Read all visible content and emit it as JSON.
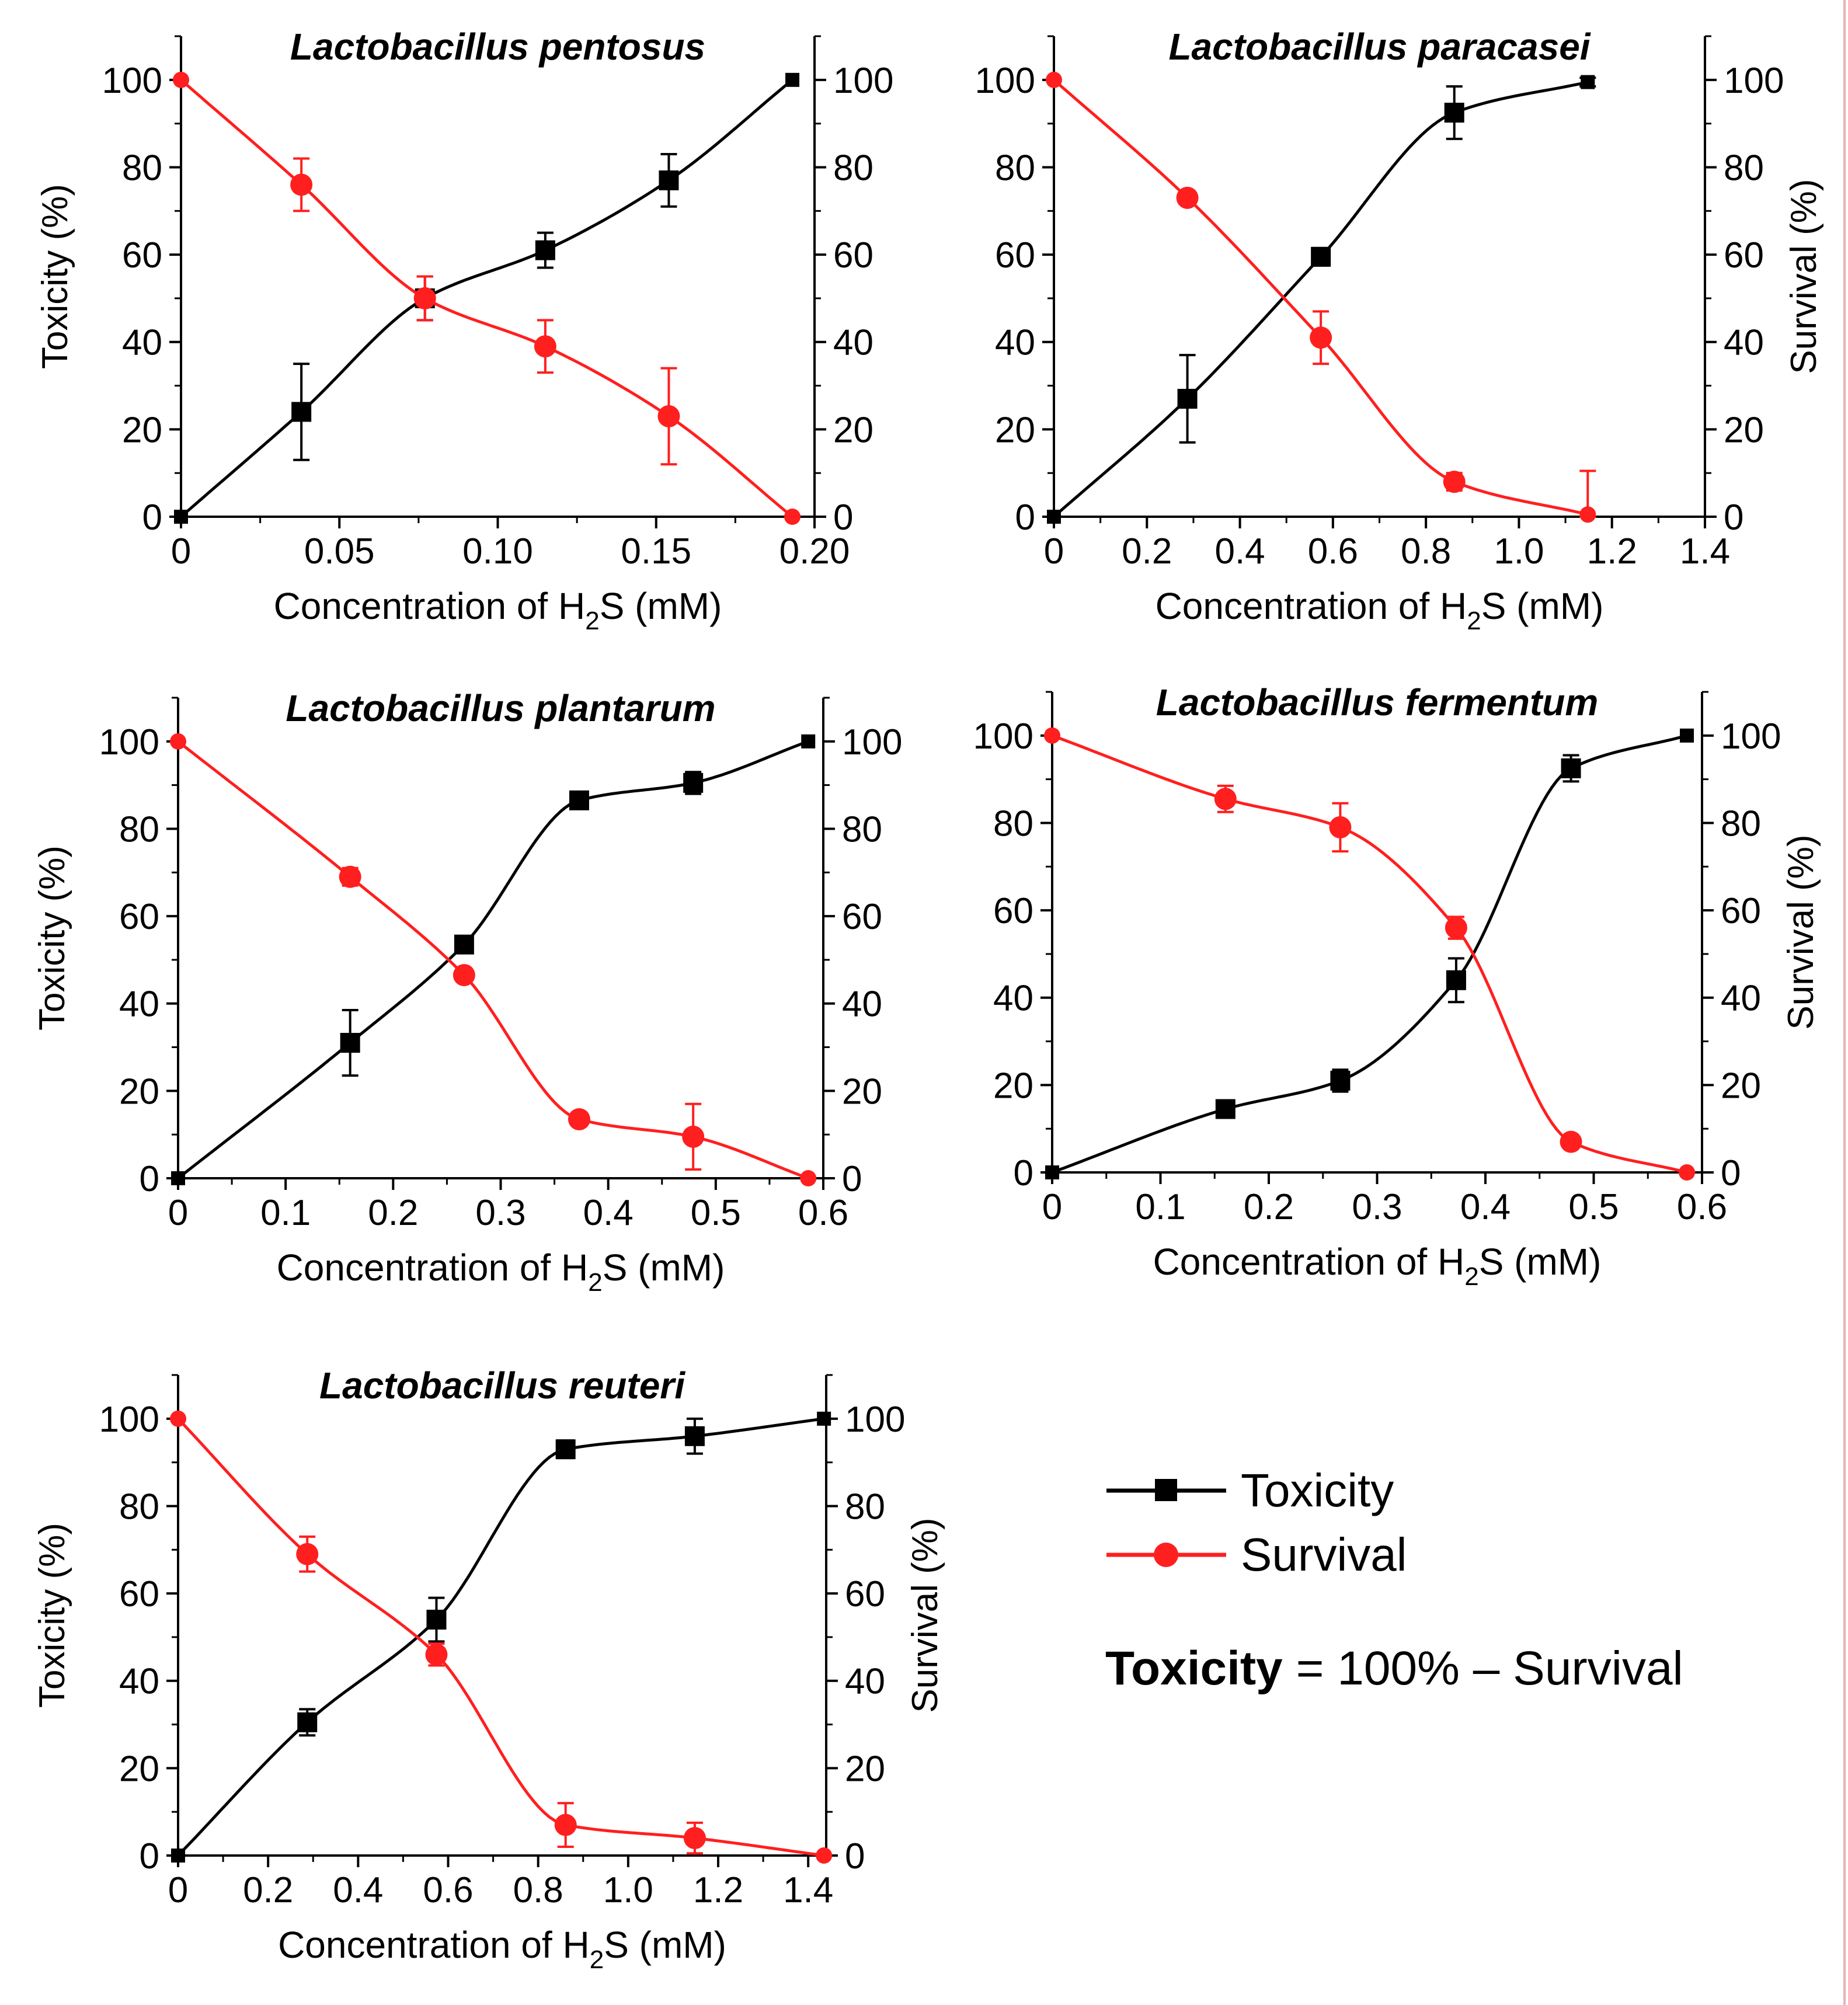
{
  "figure": {
    "legend": {
      "toxicity_label": "Toxicity",
      "survival_label": "Survival",
      "formula_bold": "Toxicity",
      "formula_rest": " = 100% – Survival"
    },
    "colors": {
      "toxicity": "#000000",
      "survival": "#ff1f1f",
      "axis": "#000000"
    }
  },
  "chart_data": [
    {
      "type": "line",
      "title": "Lactobacillus pentosus",
      "xlabel_main": "Concentration of H",
      "xlabel_sub": "2",
      "xlabel_tail": "S (mM)",
      "ylabel_left": "Toxicity (%)",
      "ylabel_right": "",
      "xlim": [
        0,
        0.2
      ],
      "xticks": [
        0,
        0.05,
        0.1,
        0.15,
        0.2
      ],
      "xtick_labels": [
        "0",
        "0.05",
        "0.10",
        "0.15",
        "0.20"
      ],
      "ylim": [
        0,
        110
      ],
      "yticks": [
        0,
        20,
        40,
        60,
        80,
        100
      ],
      "ytick_labels": [
        "0",
        "20",
        "40",
        "60",
        "80",
        "100"
      ],
      "series": [
        {
          "name": "Toxicity",
          "marker": "square",
          "x": [
            0,
            0.038,
            0.077,
            0.115,
            0.154,
            0.193
          ],
          "y": [
            0,
            24,
            50,
            61,
            77,
            100
          ],
          "err": [
            0,
            11,
            5,
            4,
            6,
            0
          ]
        },
        {
          "name": "Survival",
          "marker": "circle",
          "x": [
            0,
            0.038,
            0.077,
            0.115,
            0.154,
            0.193
          ],
          "y": [
            100,
            76,
            50,
            39,
            23,
            0
          ],
          "err": [
            0,
            6,
            5,
            6,
            11,
            0
          ]
        }
      ]
    },
    {
      "type": "line",
      "title": "Lactobacillus paracasei",
      "xlabel_main": "Concentration of H",
      "xlabel_sub": "2",
      "xlabel_tail": "S (mM)",
      "ylabel_left": "",
      "ylabel_right": "Survival  (%)",
      "xlim": [
        0,
        1.4
      ],
      "xticks": [
        0,
        0.2,
        0.4,
        0.6,
        0.8,
        1.0,
        1.2,
        1.4
      ],
      "xtick_labels": [
        "0",
        "0.2",
        "0.4",
        "0.6",
        "0.8",
        "1.0",
        "1.2",
        "1.4"
      ],
      "ylim": [
        0,
        110
      ],
      "yticks": [
        0,
        20,
        40,
        60,
        80,
        100
      ],
      "ytick_labels": [
        "0",
        "20",
        "40",
        "60",
        "80",
        "100"
      ],
      "series": [
        {
          "name": "Toxicity",
          "marker": "square",
          "x": [
            0,
            0.287,
            0.574,
            0.861,
            1.148
          ],
          "y": [
            0,
            27,
            59.5,
            92.5,
            99.5
          ],
          "err": [
            0,
            10,
            2,
            6,
            1
          ]
        },
        {
          "name": "Survival",
          "marker": "circle",
          "x": [
            0,
            0.287,
            0.574,
            0.861,
            1.148
          ],
          "y": [
            100,
            73,
            41,
            8,
            0.5
          ],
          "err": [
            0,
            1,
            6,
            2,
            10
          ]
        }
      ]
    },
    {
      "type": "line",
      "title": "Lactobacillus plantarum",
      "xlabel_main": "Concentration of H",
      "xlabel_sub": "2",
      "xlabel_tail": "S (mM)",
      "ylabel_left": "Toxicity (%)",
      "ylabel_right": "",
      "xlim": [
        0,
        0.6
      ],
      "xticks": [
        0,
        0.1,
        0.2,
        0.3,
        0.4,
        0.5,
        0.6
      ],
      "xtick_labels": [
        "0",
        "0.1",
        "0.2",
        "0.3",
        "0.4",
        "0.5",
        "0.6"
      ],
      "ylim": [
        0,
        110
      ],
      "yticks": [
        0,
        20,
        40,
        60,
        80,
        100
      ],
      "ytick_labels": [
        "0",
        "20",
        "40",
        "60",
        "80",
        "100"
      ],
      "series": [
        {
          "name": "Toxicity",
          "marker": "square",
          "x": [
            0,
            0.16,
            0.266,
            0.373,
            0.479,
            0.586
          ],
          "y": [
            0,
            31,
            53.5,
            86.5,
            90.5,
            100
          ],
          "err": [
            0,
            7.5,
            1,
            1.5,
            2.5,
            0
          ]
        },
        {
          "name": "Survival",
          "marker": "circle",
          "x": [
            0,
            0.16,
            0.266,
            0.373,
            0.479,
            0.586
          ],
          "y": [
            100,
            69,
            46.5,
            13.5,
            9.5,
            0
          ],
          "err": [
            0,
            2,
            1.5,
            1.5,
            7.5,
            0
          ]
        }
      ]
    },
    {
      "type": "line",
      "title": "Lactobacillus fermentum",
      "xlabel_main": "Concentration of H",
      "xlabel_sub": "2",
      "xlabel_tail": "S (mM)",
      "ylabel_left": "",
      "ylabel_right": "Survival  (%)",
      "xlim": [
        0,
        0.6
      ],
      "xticks": [
        0,
        0.1,
        0.2,
        0.3,
        0.4,
        0.5,
        0.6
      ],
      "xtick_labels": [
        "0",
        "0.1",
        "0.2",
        "0.3",
        "0.4",
        "0.5",
        "0.6"
      ],
      "ylim": [
        0,
        110
      ],
      "yticks": [
        0,
        20,
        40,
        60,
        80,
        100
      ],
      "ytick_labels": [
        "0",
        "20",
        "40",
        "60",
        "80",
        "100"
      ],
      "series": [
        {
          "name": "Toxicity",
          "marker": "square",
          "x": [
            0,
            0.16,
            0.266,
            0.373,
            0.479,
            0.586
          ],
          "y": [
            0,
            14.5,
            21,
            44,
            92.5,
            100
          ],
          "err": [
            0,
            1,
            2.5,
            5,
            3,
            0
          ]
        },
        {
          "name": "Survival",
          "marker": "circle",
          "x": [
            0,
            0.16,
            0.266,
            0.373,
            0.479,
            0.586
          ],
          "y": [
            100,
            85.5,
            79,
            56,
            7,
            0
          ],
          "err": [
            0,
            3,
            5.5,
            2.5,
            1,
            0
          ]
        }
      ]
    },
    {
      "type": "line",
      "title": "Lactobacillus reuteri",
      "xlabel_main": "Concentration of H",
      "xlabel_sub": "2",
      "xlabel_tail": "S (mM)",
      "ylabel_left": "Toxicity (%)",
      "ylabel_right": "Survival  (%)",
      "xlim": [
        0,
        1.44
      ],
      "xticks": [
        0,
        0.2,
        0.4,
        0.6,
        0.8,
        1.0,
        1.2,
        1.4
      ],
      "xtick_labels": [
        "0",
        "0.2",
        "0.4",
        "0.6",
        "0.8",
        "1.0",
        "1.2",
        "1.4"
      ],
      "ylim": [
        0,
        110
      ],
      "yticks": [
        0,
        20,
        40,
        60,
        80,
        100
      ],
      "ytick_labels": [
        "0",
        "20",
        "40",
        "60",
        "80",
        "100"
      ],
      "series": [
        {
          "name": "Toxicity",
          "marker": "square",
          "x": [
            0,
            0.287,
            0.574,
            0.861,
            1.148,
            1.435
          ],
          "y": [
            0,
            30.5,
            54,
            93,
            96,
            100
          ],
          "err": [
            0,
            3,
            5,
            2,
            4,
            0
          ]
        },
        {
          "name": "Survival",
          "marker": "circle",
          "x": [
            0,
            0.287,
            0.574,
            0.861,
            1.148,
            1.435
          ],
          "y": [
            100,
            69,
            46,
            7,
            4,
            0
          ],
          "err": [
            0,
            4,
            2.5,
            5,
            3.5,
            0
          ]
        }
      ]
    }
  ]
}
